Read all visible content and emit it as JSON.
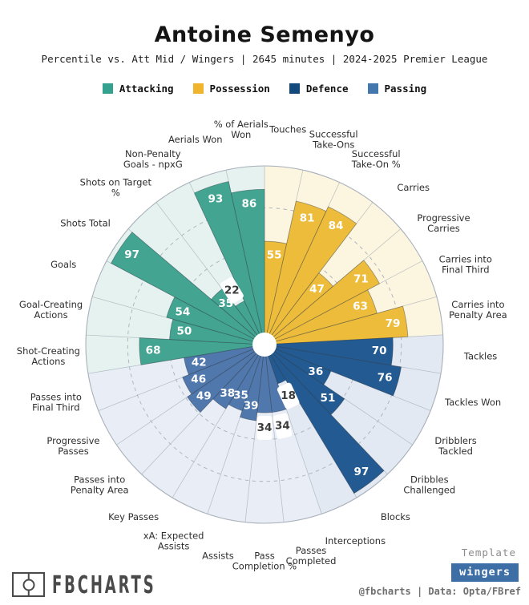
{
  "header": {
    "title": "Antoine Semenyo",
    "subtitle": "Percentile vs. Att Mid / Wingers | 2645 minutes | 2024-2025 Premier League"
  },
  "legend": [
    {
      "label": "Attacking",
      "color": "#35a28f"
    },
    {
      "label": "Possession",
      "color": "#f0b52d"
    },
    {
      "label": "Defence",
      "color": "#14497d"
    },
    {
      "label": "Passing",
      "color": "#4377ad"
    }
  ],
  "chart_data": {
    "type": "pizza-polar-bar",
    "title": "Antoine Semenyo",
    "units": "percentile",
    "ylim": [
      0,
      100
    ],
    "rings_dashed": [
      25,
      50,
      75
    ],
    "start_angle_deg": 0,
    "direction": "clockwise",
    "groups": {
      "possession": {
        "name": "Possession",
        "color": "#edbc3b",
        "bg": "#fcf5e0"
      },
      "defence": {
        "name": "Defence",
        "color": "#235a92",
        "bg": "#e3e9f2"
      },
      "passing": {
        "name": "Passing",
        "color": "#5078ad",
        "bg": "#e9edf5"
      },
      "attacking": {
        "name": "Attacking",
        "color": "#42a491",
        "bg": "#e6f2ef"
      }
    },
    "metrics": [
      {
        "label": "Touches",
        "lines": [
          "Touches"
        ],
        "value": 55,
        "group": "possession"
      },
      {
        "label": "Successful Take-Ons",
        "lines": [
          "Successful",
          "Take-Ons"
        ],
        "value": 81,
        "group": "possession"
      },
      {
        "label": "Successful Take-On %",
        "lines": [
          "Successful",
          "Take-On %"
        ],
        "value": 84,
        "group": "possession"
      },
      {
        "label": "Carries",
        "lines": [
          "Carries"
        ],
        "value": 47,
        "group": "possession"
      },
      {
        "label": "Progressive Carries",
        "lines": [
          "Progressive",
          "Carries"
        ],
        "value": 71,
        "group": "possession"
      },
      {
        "label": "Carries into Final Third",
        "lines": [
          "Carries into",
          "Final Third"
        ],
        "value": 63,
        "group": "possession"
      },
      {
        "label": "Carries into Penalty Area",
        "lines": [
          "Carries into",
          "Penalty Area"
        ],
        "value": 79,
        "group": "possession"
      },
      {
        "label": "Tackles",
        "lines": [
          "Tackles"
        ],
        "value": 70,
        "group": "defence"
      },
      {
        "label": "Tackles Won",
        "lines": [
          "Tackles Won"
        ],
        "value": 76,
        "group": "defence"
      },
      {
        "label": "Dribblers Tackled",
        "lines": [
          "Dribblers",
          "Tackled"
        ],
        "value": 36,
        "group": "defence"
      },
      {
        "label": "Dribbles Challenged",
        "lines": [
          "Dribbles",
          "Challenged"
        ],
        "value": 51,
        "group": "defence"
      },
      {
        "label": "Blocks",
        "lines": [
          "Blocks"
        ],
        "value": 97,
        "group": "defence"
      },
      {
        "label": "Interceptions",
        "lines": [
          "Interceptions"
        ],
        "value": 18,
        "group": "defence"
      },
      {
        "label": "Passes Completed",
        "lines": [
          "Passes",
          "Completed"
        ],
        "value": 34,
        "group": "passing"
      },
      {
        "label": "Pass Completion %",
        "lines": [
          "Pass",
          "Completion %"
        ],
        "value": 34,
        "group": "passing"
      },
      {
        "label": "Assists",
        "lines": [
          "Assists"
        ],
        "value": 39,
        "group": "passing"
      },
      {
        "label": "xA: Expected Assists",
        "lines": [
          "xA: Expected",
          "Assists"
        ],
        "value": 35,
        "group": "passing"
      },
      {
        "label": "Key Passes",
        "lines": [
          "Key Passes"
        ],
        "value": 38,
        "group": "passing"
      },
      {
        "label": "Passes into Penalty Area",
        "lines": [
          "Passes into",
          "Penalty Area"
        ],
        "value": 49,
        "group": "passing"
      },
      {
        "label": "Progressive Passes",
        "lines": [
          "Progressive",
          "Passes"
        ],
        "value": 46,
        "group": "passing"
      },
      {
        "label": "Passes into Final Third",
        "lines": [
          "Passes into",
          "Final Third"
        ],
        "value": 42,
        "group": "passing"
      },
      {
        "label": "Shot-Creating Actions",
        "lines": [
          "Shot-Creating",
          "Actions"
        ],
        "value": 68,
        "group": "attacking"
      },
      {
        "label": "Goal-Creating Actions",
        "lines": [
          "Goal-Creating",
          "Actions"
        ],
        "value": 50,
        "group": "attacking"
      },
      {
        "label": "Goals",
        "lines": [
          "Goals"
        ],
        "value": 54,
        "group": "attacking"
      },
      {
        "label": "Shots Total",
        "lines": [
          "Shots Total"
        ],
        "value": 97,
        "group": "attacking"
      },
      {
        "label": "Shots on Target %",
        "lines": [
          "Shots on Target",
          "%"
        ],
        "value": 35,
        "group": "attacking"
      },
      {
        "label": "Non-Penalty Goals - npxG",
        "lines": [
          "Non-Penalty",
          "Goals - npxG"
        ],
        "value": 22,
        "group": "attacking"
      },
      {
        "label": "Aerials Won",
        "lines": [
          "Aerials Won"
        ],
        "value": 93,
        "group": "attacking"
      },
      {
        "label": "% of Aerials Won",
        "lines": [
          "% of Aerials",
          "Won"
        ],
        "value": 86,
        "group": "attacking"
      }
    ]
  },
  "footer": {
    "brand": "FBCHARTS",
    "template_label": "Template",
    "template_value": "wingers",
    "credit": "@fbcharts | Data: Opta/FBref"
  }
}
